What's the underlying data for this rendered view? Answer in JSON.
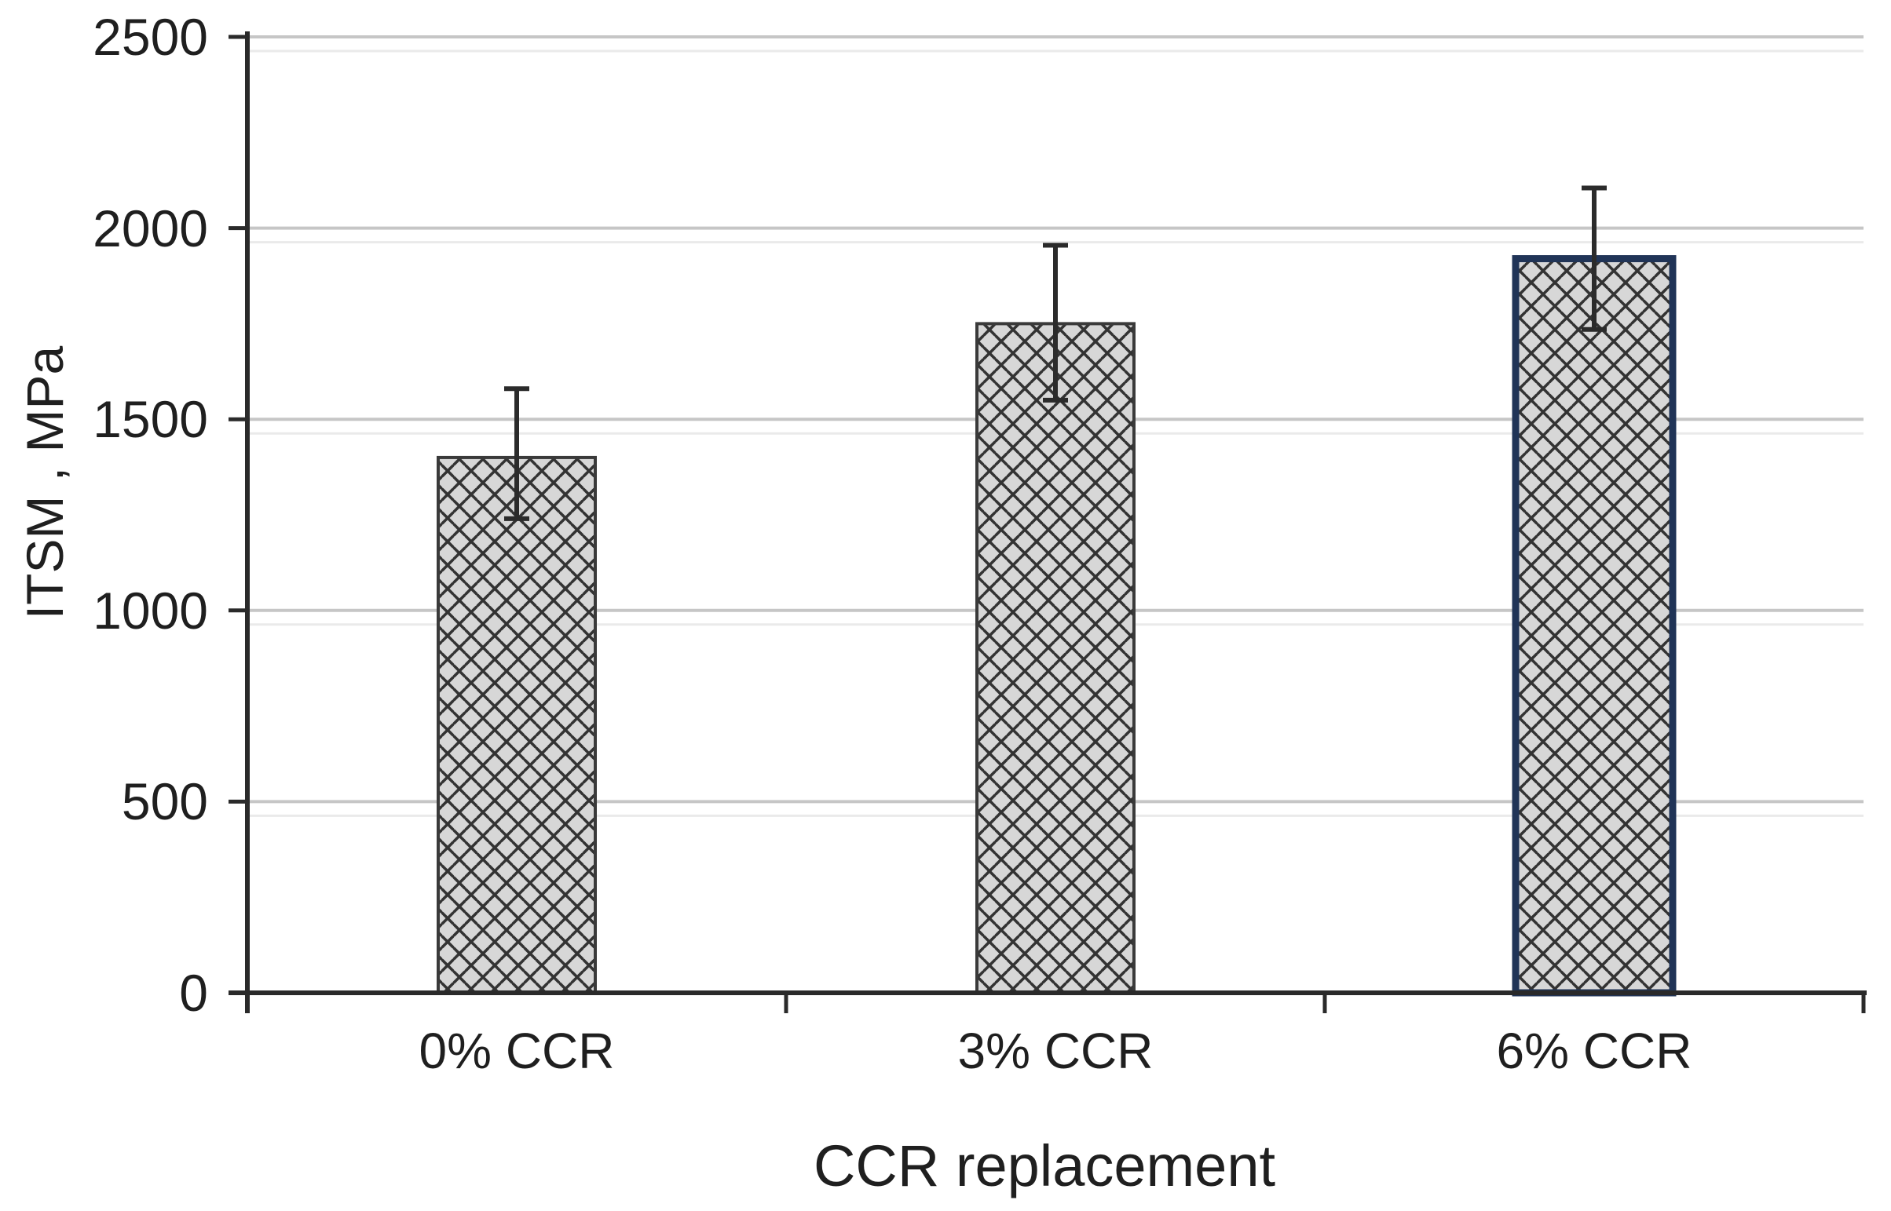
{
  "chart_data": {
    "type": "bar",
    "title": "",
    "categories": [
      "0% CCR",
      "3% CCR",
      "6% CCR"
    ],
    "values": [
      1400,
      1750,
      1920
    ],
    "error_bars": [
      {
        "low": 1240,
        "high": 1580
      },
      {
        "low": 1550,
        "high": 1955
      },
      {
        "low": 1735,
        "high": 2105
      }
    ],
    "xlabel": "CCR replacement",
    "ylabel": "ITSM , MPa",
    "ylim": [
      0,
      2500
    ],
    "yticks": [
      0,
      500,
      1000,
      1500,
      2000,
      2500
    ],
    "ytick_labels": [
      "0",
      "500",
      "1000",
      "1500",
      "2000",
      "2500"
    ],
    "grid": "horizontal major gridlines every 500, no vertical gridlines",
    "legend_position": "none",
    "bar_fill_style": "dotted-diamond hatch pattern",
    "colors": {
      "bar_fill_base": "#d7d7d7",
      "bar_hatch_dot": "#333333",
      "bar_border": [
        "#3a3a3a",
        "#3a3a3a",
        "#203457"
      ],
      "gridline": "#c6c6c6",
      "gridline_echo": "#eaeaea",
      "axis": "#2a2a2a",
      "error_bar": "#2b2b2b",
      "text": "#1f1f1f",
      "background": "#ffffff"
    },
    "bar_border_widths": [
      4,
      4,
      9
    ]
  }
}
